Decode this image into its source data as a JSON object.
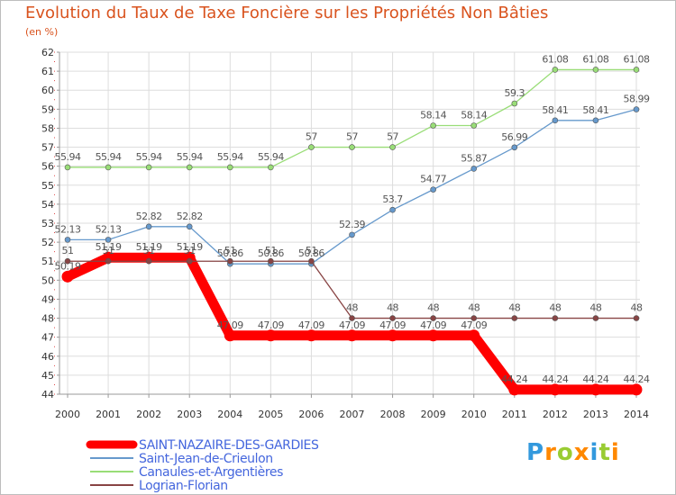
{
  "chart_data": {
    "type": "line",
    "title": "Evolution du Taux de Taxe Foncière sur les Propriétés Non Bâties",
    "unit_label": "(en %)",
    "x": [
      "2000",
      "2001",
      "2002",
      "2003",
      "2004",
      "2005",
      "2006",
      "2007",
      "2008",
      "2009",
      "2010",
      "2011",
      "2012",
      "2013",
      "2014"
    ],
    "ylim": [
      44,
      62
    ],
    "yticks": [
      "44",
      "45",
      "46",
      "47",
      "48",
      "49",
      "50",
      "51",
      "52",
      "53",
      "54",
      "55",
      "56",
      "57",
      "58",
      "59",
      "60",
      "61",
      "62"
    ],
    "grid": true,
    "legend_position": "bottom-left",
    "series": [
      {
        "name": "SAINT-NAZAIRE-DES-GARDIES",
        "color": "#ff0000",
        "values": [
          50.19,
          51.19,
          51.19,
          51.19,
          47.09,
          47.09,
          47.09,
          47.09,
          47.09,
          47.09,
          47.09,
          44.24,
          44.24,
          44.24,
          44.24
        ],
        "labels": [
          "50.19",
          "51.19",
          "51.19",
          "51.19",
          "47.09",
          "47.09",
          "47.09",
          "47.09",
          "47.09",
          "47.09",
          "47.09",
          "44.24",
          "44.24",
          "44.24",
          "44.24"
        ]
      },
      {
        "name": "Saint-Jean-de-Crieulon",
        "color": "#6699cc",
        "values": [
          52.13,
          52.13,
          52.82,
          52.82,
          50.86,
          50.86,
          50.86,
          52.39,
          53.7,
          54.77,
          55.87,
          56.99,
          58.41,
          58.41,
          58.99
        ],
        "labels": [
          "52.13",
          "52.13",
          "52.82",
          "52.82",
          "50.86",
          "50.86",
          "50.86",
          "52.39",
          "53.7",
          "54.77",
          "55.87",
          "56.99",
          "58.41",
          "58.41",
          "58.99"
        ]
      },
      {
        "name": "Canaules-et-Argentières",
        "color": "#99dd77",
        "values": [
          55.94,
          55.94,
          55.94,
          55.94,
          55.94,
          55.94,
          57,
          57,
          57,
          58.14,
          58.14,
          59.3,
          61.08,
          61.08,
          61.08
        ],
        "labels": [
          "55.94",
          "55.94",
          "55.94",
          "55.94",
          "55.94",
          "55.94",
          "57",
          "57",
          "57",
          "58.14",
          "58.14",
          "59.3",
          "61.08",
          "61.08",
          "61.08"
        ]
      },
      {
        "name": "Logrian-Florian",
        "color": "#884444",
        "values": [
          51,
          51,
          51,
          51,
          51,
          51,
          51,
          48,
          48,
          48,
          48,
          48,
          48,
          48,
          48
        ],
        "labels": [
          "51",
          "51",
          "51",
          "51",
          "51",
          "51",
          "51",
          "48",
          "48",
          "48",
          "48",
          "48",
          "48",
          "48",
          "48"
        ]
      }
    ]
  },
  "logo": {
    "text": "Proxiti",
    "letter_colors": [
      "#3399dd",
      "#ff8800",
      "#99cc33",
      "#ff8800",
      "#3399dd",
      "#99cc33",
      "#ff8800"
    ]
  }
}
